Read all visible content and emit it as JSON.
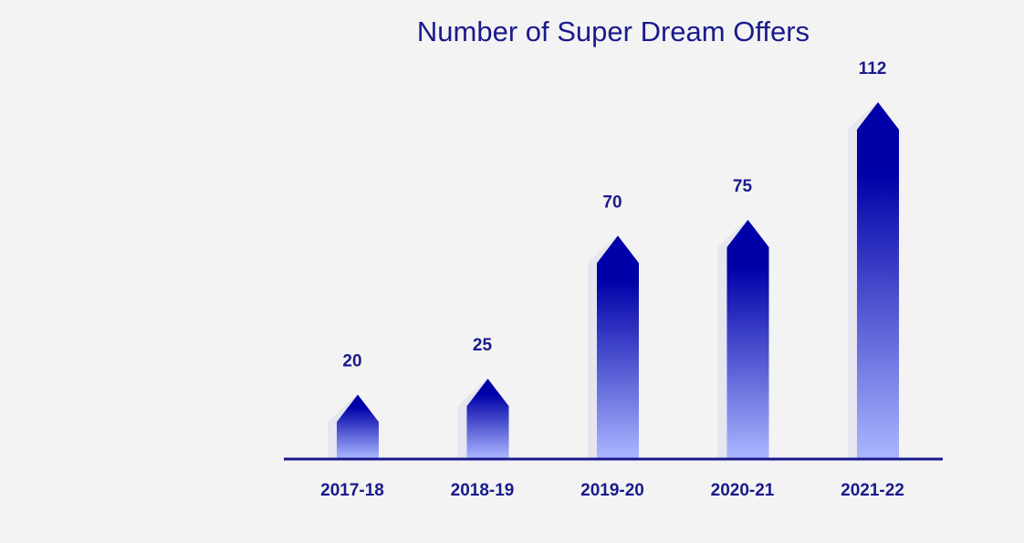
{
  "chart_data": {
    "type": "bar",
    "title": "Number of Super Dream Offers",
    "categories": [
      "2017-18",
      "2018-19",
      "2019-20",
      "2020-21",
      "2021-22"
    ],
    "values": [
      20,
      25,
      70,
      75,
      112
    ],
    "data_labels": [
      "20",
      "25",
      "70",
      "75",
      "112"
    ],
    "ylim": [
      0,
      125
    ],
    "grid": false,
    "legend": "none"
  },
  "colors": {
    "background": "#f3f3f3",
    "bar_top": "#0000a8",
    "bar_bottom": "#aab6ff",
    "bar_shadow": "#e6e6ee",
    "axis": "#1a1a8c",
    "text": "#1a1a8c"
  }
}
